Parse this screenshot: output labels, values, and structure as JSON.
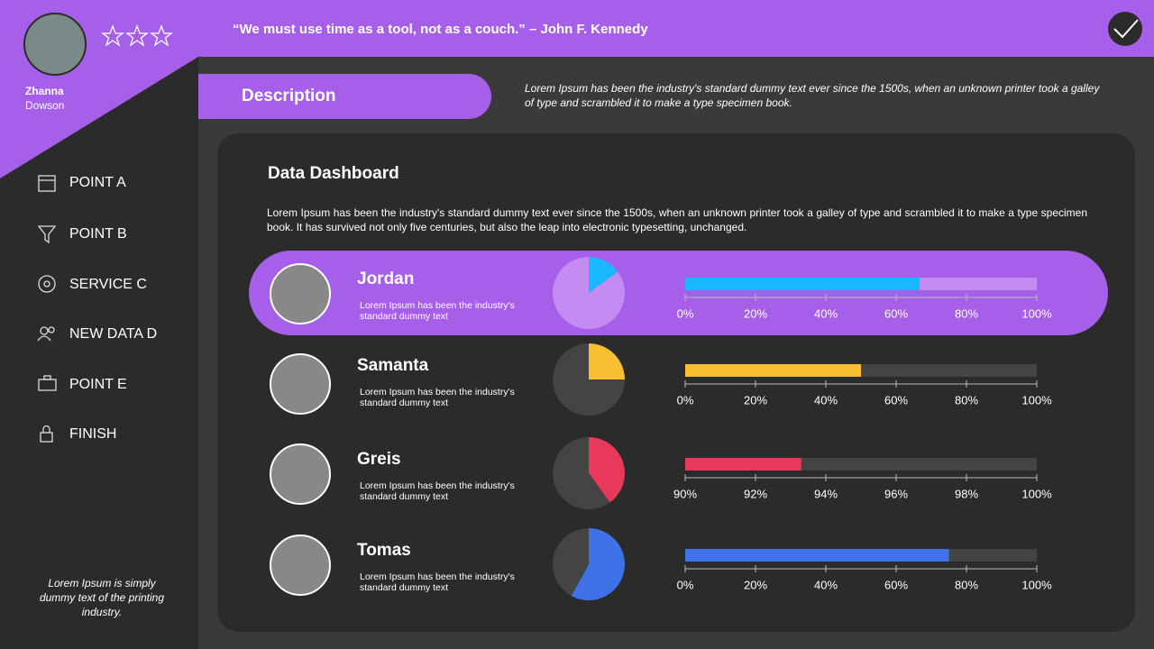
{
  "profile": {
    "first_name": "Zhanna",
    "last_name": "Dowson"
  },
  "header": {
    "quote": "“We must use time as a tool, not as a couch.” – John F. Kennedy"
  },
  "sidebar": {
    "items": [
      "POINT A",
      "POINT B",
      "SERVICE C",
      "NEW DATA D",
      "POINT E",
      "FINISH"
    ],
    "footer": "Lorem Ipsum is simply dummy text of the printing industry."
  },
  "description": {
    "label": "Description",
    "text": "Lorem Ipsum has been the industry's standard dummy text ever since the 1500s, when an unknown printer took a galley of type and scrambled it to make a type specimen book."
  },
  "dashboard": {
    "title": "Data Dashboard",
    "text": "Lorem Ipsum has been the industry's standard dummy text ever since the 1500s, when an unknown printer took a galley of type and scrambled it to make a type specimen book. It has survived not only five centuries, but also the leap into electronic typesetting, unchanged.",
    "people": [
      {
        "name": "Jordan",
        "text": "Lorem Ipsum has been the industry's standard dummy text"
      },
      {
        "name": "Samanta",
        "text": "Lorem Ipsum has been the industry's standard dummy text"
      },
      {
        "name": "Greis",
        "text": "Lorem Ipsum has been the industry's standard dummy text"
      },
      {
        "name": "Tomas",
        "text": "Lorem Ipsum has been the industry's standard dummy text"
      }
    ]
  },
  "chart_data": [
    {
      "type": "pie",
      "values": [
        15,
        85
      ],
      "colors": [
        "#1ab6ff",
        "#c48bf2"
      ]
    },
    {
      "type": "bar",
      "values": [
        66.7
      ],
      "color": "#1ab6ff",
      "track_color": "#c48bf2",
      "xlim": [
        0,
        100
      ],
      "xticks": [
        {
          "value": 0,
          "label": "0%"
        },
        {
          "value": 20,
          "label": "20%"
        },
        {
          "value": 40,
          "label": "40%"
        },
        {
          "value": 60,
          "label": "60%"
        },
        {
          "value": 80,
          "label": "80%"
        },
        {
          "value": 100,
          "label": "100%"
        }
      ]
    },
    {
      "type": "pie",
      "values": [
        25,
        75
      ],
      "colors": [
        "#f8c030",
        "#444444"
      ]
    },
    {
      "type": "bar",
      "values": [
        50
      ],
      "color": "#f8c030",
      "track_color": "#444444",
      "xlim": [
        0,
        100
      ],
      "xticks": [
        {
          "value": 0,
          "label": "0%"
        },
        {
          "value": 20,
          "label": "20%"
        },
        {
          "value": 40,
          "label": "40%"
        },
        {
          "value": 60,
          "label": "60%"
        },
        {
          "value": 80,
          "label": "80%"
        },
        {
          "value": 100,
          "label": "100%"
        }
      ]
    },
    {
      "type": "pie",
      "values": [
        40,
        60
      ],
      "colors": [
        "#e8395a",
        "#444444"
      ]
    },
    {
      "type": "bar",
      "values": [
        93.3
      ],
      "color": "#e8395a",
      "track_color": "#444444",
      "xlim": [
        90,
        100
      ],
      "xticks": [
        {
          "value": 90,
          "label": "90%"
        },
        {
          "value": 92,
          "label": "92%"
        },
        {
          "value": 94,
          "label": "94%"
        },
        {
          "value": 96,
          "label": "96%"
        },
        {
          "value": 98,
          "label": "98%"
        },
        {
          "value": 100,
          "label": "100%"
        }
      ]
    },
    {
      "type": "pie",
      "values": [
        58,
        42
      ],
      "colors": [
        "#3f72e6",
        "#444444"
      ]
    },
    {
      "type": "bar",
      "values": [
        75
      ],
      "color": "#3f72e6",
      "track_color": "#444444",
      "xlim": [
        0,
        100
      ],
      "xticks": [
        {
          "value": 0,
          "label": "0%"
        },
        {
          "value": 20,
          "label": "20%"
        },
        {
          "value": 40,
          "label": "40%"
        },
        {
          "value": 60,
          "label": "60%"
        },
        {
          "value": 80,
          "label": "80%"
        },
        {
          "value": 100,
          "label": "100%"
        }
      ]
    }
  ]
}
